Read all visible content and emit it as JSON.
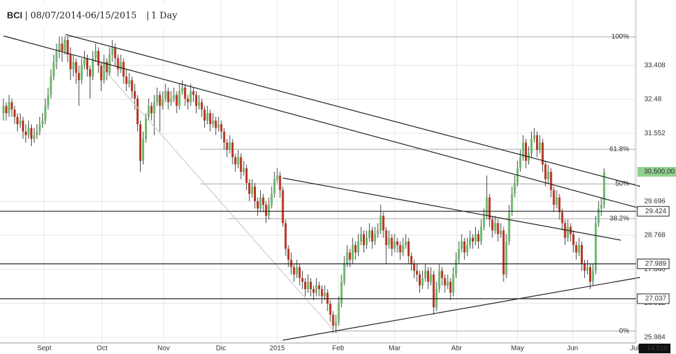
{
  "chart_data": {
    "type": "candlestick",
    "header": {
      "symbol": "BCI",
      "range": "08/07/2014-06/15/2015",
      "interval": "1 Day"
    },
    "xlim": [
      -1.23,
      226.4
    ],
    "xticks": [
      {
        "value": 14.6,
        "label": "Sept"
      },
      {
        "value": 35.3,
        "label": "Oct"
      },
      {
        "value": 57.3,
        "label": "Nov"
      },
      {
        "value": 77.8,
        "label": "Dic"
      },
      {
        "value": 98.0,
        "label": "2015"
      },
      {
        "value": 119.8,
        "label": "Feb"
      },
      {
        "value": 140.0,
        "label": "Mar"
      },
      {
        "value": 162.2,
        "label": "Abr"
      },
      {
        "value": 184.0,
        "label": "May"
      },
      {
        "value": 203.7,
        "label": "Jun"
      },
      {
        "value": 225.9,
        "label": "Jul"
      }
    ],
    "ylim": [
      25.83,
      35.19
    ],
    "yticks": [
      33.408,
      32.48,
      {
        "value": 32.48,
        "label": "32.480"
      },
      31.552,
      29.696,
      28.768,
      {
        "value": 27.84,
        "label": "27.840"
      },
      26.912,
      25.984
    ],
    "grid": true,
    "up_color": "#6ab86a",
    "down_color": "#b8321e",
    "fib": {
      "high": 34.185,
      "low": 26.154,
      "levels": [
        {
          "value": 100,
          "label": "100%"
        },
        {
          "value": 61.8,
          "label": "61.8%"
        },
        {
          "value": 50,
          "label": "50%"
        },
        {
          "value": 38.2,
          "label": "38.2%"
        },
        {
          "value": 0,
          "label": "0%"
        }
      ]
    },
    "price_lines": [
      29.424,
      27.989,
      27.037
    ],
    "last_price": {
      "value": 30.5,
      "label": "30.500,00",
      "color": "#8fd18f"
    },
    "bottom_label": "14.518",
    "ohlc": [
      [
        32.1,
        32.5,
        31.9,
        32.3
      ],
      [
        32.3,
        32.4,
        31.9,
        32.1
      ],
      [
        32.1,
        32.6,
        32.0,
        32.4
      ],
      [
        32.4,
        32.5,
        32.0,
        32.2
      ],
      [
        32.2,
        32.3,
        31.8,
        32.0
      ],
      [
        32.0,
        32.1,
        31.6,
        31.8
      ],
      [
        31.8,
        32.1,
        31.7,
        31.9
      ],
      [
        31.9,
        32.0,
        31.4,
        31.6
      ],
      [
        31.6,
        31.8,
        31.3,
        31.5
      ],
      [
        31.5,
        31.9,
        31.4,
        31.7
      ],
      [
        31.7,
        31.8,
        31.2,
        31.4
      ],
      [
        31.4,
        31.7,
        31.3,
        31.5
      ],
      [
        31.5,
        31.8,
        31.4,
        31.6
      ],
      [
        31.6,
        32.0,
        31.5,
        31.8
      ],
      [
        31.8,
        32.1,
        31.7,
        31.9
      ],
      [
        31.9,
        32.5,
        31.8,
        32.3
      ],
      [
        32.3,
        32.8,
        32.2,
        32.6
      ],
      [
        32.6,
        33.3,
        32.5,
        33.1
      ],
      [
        33.1,
        33.7,
        33.0,
        33.5
      ],
      [
        33.5,
        34.0,
        33.3,
        33.8
      ],
      [
        33.8,
        34.2,
        33.6,
        34.0
      ],
      [
        34.0,
        34.2,
        33.5,
        33.8
      ],
      [
        33.8,
        34.2,
        33.7,
        34.1
      ],
      [
        34.1,
        34.2,
        33.5,
        33.7
      ],
      [
        33.7,
        33.9,
        33.0,
        33.3
      ],
      [
        33.3,
        33.7,
        33.1,
        33.5
      ],
      [
        33.5,
        33.6,
        32.9,
        33.2
      ],
      [
        33.2,
        33.4,
        32.3,
        33.0
      ],
      [
        33.0,
        33.6,
        32.9,
        33.4
      ],
      [
        33.4,
        33.8,
        33.3,
        33.6
      ],
      [
        33.6,
        33.7,
        33.1,
        33.3
      ],
      [
        33.3,
        33.4,
        32.5,
        33.1
      ],
      [
        33.1,
        33.8,
        33.0,
        33.6
      ],
      [
        33.6,
        34.0,
        33.5,
        33.8
      ],
      [
        33.8,
        33.9,
        33.2,
        33.4
      ],
      [
        33.4,
        33.5,
        32.7,
        33.0
      ],
      [
        33.0,
        33.7,
        32.9,
        33.5
      ],
      [
        33.5,
        33.6,
        33.0,
        33.2
      ],
      [
        33.2,
        33.9,
        33.1,
        33.7
      ],
      [
        33.7,
        34.1,
        33.5,
        33.9
      ],
      [
        33.9,
        34.0,
        33.4,
        33.6
      ],
      [
        33.6,
        33.7,
        33.1,
        33.3
      ],
      [
        33.3,
        33.7,
        33.2,
        33.5
      ],
      [
        33.5,
        33.6,
        32.9,
        33.1
      ],
      [
        33.1,
        33.3,
        32.7,
        32.9
      ],
      [
        32.9,
        33.2,
        32.8,
        33.0
      ],
      [
        33.0,
        33.1,
        32.5,
        32.7
      ],
      [
        32.7,
        32.9,
        32.2,
        32.5
      ],
      [
        32.5,
        32.6,
        31.6,
        31.8
      ],
      [
        31.8,
        31.9,
        30.5,
        30.8
      ],
      [
        30.8,
        31.6,
        30.7,
        31.4
      ],
      [
        31.4,
        32.1,
        31.3,
        32.0
      ],
      [
        32.0,
        32.5,
        31.9,
        32.3
      ],
      [
        32.3,
        32.4,
        31.9,
        32.1
      ],
      [
        32.1,
        32.6,
        31.5,
        32.4
      ],
      [
        32.4,
        32.8,
        32.3,
        32.6
      ],
      [
        32.6,
        32.7,
        31.6,
        32.3
      ],
      [
        32.3,
        32.7,
        32.2,
        32.5
      ],
      [
        32.5,
        32.9,
        32.4,
        32.7
      ],
      [
        32.7,
        32.8,
        32.2,
        32.4
      ],
      [
        32.4,
        32.7,
        32.3,
        32.5
      ],
      [
        32.5,
        32.8,
        32.4,
        32.6
      ],
      [
        32.6,
        32.7,
        32.1,
        32.3
      ],
      [
        32.3,
        32.9,
        32.2,
        32.7
      ],
      [
        32.7,
        33.0,
        32.6,
        32.8
      ],
      [
        32.8,
        32.9,
        32.3,
        32.5
      ],
      [
        32.5,
        32.6,
        32.2,
        32.4
      ],
      [
        32.4,
        32.9,
        32.3,
        32.7
      ],
      [
        32.7,
        32.8,
        32.4,
        32.6
      ],
      [
        32.6,
        32.7,
        32.1,
        32.3
      ],
      [
        32.3,
        32.6,
        32.2,
        32.4
      ],
      [
        32.4,
        32.5,
        32.0,
        32.2
      ],
      [
        32.2,
        32.3,
        31.7,
        31.9
      ],
      [
        31.9,
        32.3,
        31.8,
        32.1
      ],
      [
        32.1,
        32.2,
        31.6,
        31.8
      ],
      [
        31.8,
        32.1,
        31.7,
        31.9
      ],
      [
        31.9,
        32.0,
        31.5,
        31.7
      ],
      [
        31.7,
        32.0,
        31.6,
        31.8
      ],
      [
        31.8,
        31.9,
        31.4,
        31.6
      ],
      [
        31.6,
        31.7,
        31.1,
        31.3
      ],
      [
        31.3,
        31.4,
        30.9,
        31.1
      ],
      [
        31.1,
        31.5,
        31.0,
        31.3
      ],
      [
        31.3,
        31.4,
        30.7,
        30.9
      ],
      [
        30.9,
        31.0,
        30.5,
        30.7
      ],
      [
        30.7,
        31.1,
        30.6,
        30.9
      ],
      [
        30.9,
        31.0,
        30.3,
        30.5
      ],
      [
        30.5,
        30.8,
        30.4,
        30.6
      ],
      [
        30.6,
        30.7,
        30.0,
        30.2
      ],
      [
        30.2,
        30.3,
        29.7,
        29.9
      ],
      [
        29.9,
        30.3,
        29.8,
        30.1
      ],
      [
        30.1,
        30.2,
        29.5,
        29.7
      ],
      [
        29.7,
        29.8,
        29.3,
        29.5
      ],
      [
        29.5,
        30.0,
        29.4,
        29.8
      ],
      [
        29.8,
        29.9,
        29.4,
        29.6
      ],
      [
        29.6,
        29.7,
        29.1,
        29.3
      ],
      [
        29.3,
        29.8,
        29.2,
        29.6
      ],
      [
        29.6,
        30.1,
        29.5,
        29.9
      ],
      [
        29.9,
        30.5,
        29.8,
        30.3
      ],
      [
        30.3,
        30.6,
        30.2,
        30.4
      ],
      [
        30.4,
        30.5,
        29.8,
        30.0
      ],
      [
        30.0,
        30.1,
        29.0,
        29.1
      ],
      [
        29.1,
        29.2,
        28.2,
        28.4
      ],
      [
        28.4,
        28.5,
        27.9,
        28.1
      ],
      [
        28.1,
        28.3,
        27.7,
        27.9
      ],
      [
        27.9,
        28.0,
        27.5,
        27.7
      ],
      [
        27.7,
        28.1,
        27.6,
        27.9
      ],
      [
        27.9,
        28.0,
        27.4,
        27.6
      ],
      [
        27.6,
        27.8,
        27.3,
        27.5
      ],
      [
        27.5,
        27.6,
        27.1,
        27.3
      ],
      [
        27.3,
        27.7,
        27.2,
        27.5
      ],
      [
        27.5,
        27.6,
        27.1,
        27.3
      ],
      [
        27.3,
        27.4,
        27.0,
        27.2
      ],
      [
        27.2,
        27.6,
        27.1,
        27.4
      ],
      [
        27.4,
        27.5,
        27.1,
        27.3
      ],
      [
        27.3,
        27.4,
        26.9,
        27.1
      ],
      [
        27.1,
        27.4,
        27.0,
        27.2
      ],
      [
        27.2,
        27.3,
        26.7,
        26.9
      ],
      [
        26.9,
        27.0,
        26.4,
        26.6
      ],
      [
        26.6,
        26.7,
        26.1,
        26.3
      ],
      [
        26.3,
        26.6,
        26.1,
        26.4
      ],
      [
        26.4,
        27.1,
        26.3,
        26.9
      ],
      [
        26.9,
        27.7,
        26.8,
        27.5
      ],
      [
        27.5,
        28.2,
        27.4,
        28.0
      ],
      [
        28.0,
        28.5,
        27.9,
        28.3
      ],
      [
        28.3,
        28.4,
        27.9,
        28.1
      ],
      [
        28.1,
        28.7,
        28.0,
        28.5
      ],
      [
        28.5,
        28.6,
        28.1,
        28.3
      ],
      [
        28.3,
        28.8,
        28.2,
        28.6
      ],
      [
        28.6,
        29.0,
        28.5,
        28.8
      ],
      [
        28.8,
        28.9,
        28.3,
        28.5
      ],
      [
        28.5,
        28.9,
        28.4,
        28.7
      ],
      [
        28.7,
        29.1,
        28.6,
        28.9
      ],
      [
        28.9,
        29.0,
        28.4,
        28.6
      ],
      [
        28.6,
        29.0,
        28.5,
        28.8
      ],
      [
        28.8,
        29.1,
        28.7,
        28.9
      ],
      [
        28.9,
        29.6,
        28.8,
        29.3
      ],
      [
        29.3,
        29.4,
        28.7,
        28.9
      ],
      [
        28.9,
        29.0,
        28.0,
        28.5
      ],
      [
        28.5,
        28.9,
        28.4,
        28.7
      ],
      [
        28.7,
        28.8,
        28.2,
        28.4
      ],
      [
        28.4,
        28.8,
        28.3,
        28.6
      ],
      [
        28.6,
        28.7,
        28.3,
        28.5
      ],
      [
        28.5,
        28.6,
        28.1,
        28.3
      ],
      [
        28.3,
        28.7,
        28.2,
        28.5
      ],
      [
        28.5,
        28.8,
        28.4,
        28.6
      ],
      [
        28.6,
        28.7,
        28.0,
        28.2
      ],
      [
        28.2,
        28.3,
        27.8,
        28.0
      ],
      [
        28.0,
        28.1,
        27.6,
        27.8
      ],
      [
        27.8,
        28.0,
        27.5,
        27.7
      ],
      [
        27.7,
        27.8,
        27.2,
        27.4
      ],
      [
        27.4,
        27.8,
        27.3,
        27.6
      ],
      [
        27.6,
        28.0,
        27.5,
        27.8
      ],
      [
        27.8,
        27.9,
        27.3,
        27.5
      ],
      [
        27.5,
        27.9,
        27.4,
        27.7
      ],
      [
        27.7,
        27.8,
        26.6,
        26.8
      ],
      [
        26.8,
        27.5,
        26.7,
        27.3
      ],
      [
        27.3,
        28.0,
        27.2,
        27.8
      ],
      [
        27.8,
        27.9,
        27.4,
        27.6
      ],
      [
        27.6,
        27.7,
        27.2,
        27.4
      ],
      [
        27.4,
        27.7,
        27.3,
        27.5
      ],
      [
        27.5,
        27.6,
        27.0,
        27.2
      ],
      [
        27.2,
        27.9,
        27.1,
        27.7
      ],
      [
        27.7,
        28.3,
        27.6,
        28.1
      ],
      [
        28.1,
        28.6,
        28.0,
        28.4
      ],
      [
        28.4,
        28.8,
        28.3,
        28.6
      ],
      [
        28.6,
        28.7,
        28.1,
        28.3
      ],
      [
        28.3,
        28.7,
        28.2,
        28.5
      ],
      [
        28.5,
        28.9,
        28.4,
        28.7
      ],
      [
        28.7,
        28.8,
        28.4,
        28.6
      ],
      [
        28.6,
        29.0,
        28.5,
        28.8
      ],
      [
        28.8,
        28.9,
        28.4,
        28.6
      ],
      [
        28.6,
        29.2,
        28.5,
        29.0
      ],
      [
        29.0,
        29.5,
        28.9,
        29.3
      ],
      [
        29.3,
        30.4,
        29.2,
        29.8
      ],
      [
        29.8,
        29.9,
        29.0,
        29.2
      ],
      [
        29.2,
        29.3,
        28.7,
        28.9
      ],
      [
        28.9,
        29.3,
        28.8,
        29.1
      ],
      [
        29.1,
        29.2,
        28.6,
        28.8
      ],
      [
        28.8,
        29.1,
        28.7,
        28.9
      ],
      [
        28.9,
        29.0,
        27.5,
        27.7
      ],
      [
        27.7,
        28.8,
        27.6,
        28.6
      ],
      [
        28.6,
        29.6,
        28.5,
        29.4
      ],
      [
        29.4,
        30.1,
        29.3,
        29.9
      ],
      [
        29.9,
        30.4,
        29.8,
        30.2
      ],
      [
        30.2,
        30.8,
        30.1,
        30.6
      ],
      [
        30.6,
        31.1,
        30.5,
        30.9
      ],
      [
        30.9,
        31.5,
        30.8,
        31.3
      ],
      [
        31.3,
        31.4,
        30.6,
        30.8
      ],
      [
        30.8,
        31.2,
        30.7,
        31.0
      ],
      [
        31.0,
        31.6,
        30.9,
        31.4
      ],
      [
        31.4,
        31.7,
        31.3,
        31.5
      ],
      [
        31.5,
        31.6,
        30.9,
        31.1
      ],
      [
        31.1,
        31.5,
        31.0,
        31.3
      ],
      [
        31.3,
        31.4,
        30.5,
        30.7
      ],
      [
        30.7,
        30.8,
        30.1,
        30.3
      ],
      [
        30.3,
        30.7,
        30.2,
        30.5
      ],
      [
        30.5,
        30.6,
        29.8,
        30.0
      ],
      [
        30.0,
        30.1,
        29.4,
        29.6
      ],
      [
        29.6,
        30.0,
        29.5,
        29.8
      ],
      [
        29.8,
        29.9,
        29.2,
        29.4
      ],
      [
        29.4,
        29.5,
        28.9,
        29.1
      ],
      [
        29.1,
        29.2,
        28.5,
        28.7
      ],
      [
        28.7,
        29.2,
        28.6,
        29.0
      ],
      [
        29.0,
        29.1,
        28.6,
        28.8
      ],
      [
        28.8,
        28.9,
        28.3,
        28.5
      ],
      [
        28.5,
        28.6,
        28.1,
        28.3
      ],
      [
        28.3,
        28.7,
        28.2,
        28.5
      ],
      [
        28.5,
        28.6,
        27.8,
        28.0
      ],
      [
        28.0,
        28.1,
        27.6,
        27.8
      ],
      [
        27.8,
        28.1,
        27.7,
        27.9
      ],
      [
        27.9,
        28.0,
        27.3,
        27.5
      ],
      [
        27.5,
        28.0,
        27.4,
        27.8
      ],
      [
        27.8,
        29.3,
        27.7,
        29.1
      ],
      [
        29.1,
        29.7,
        29.0,
        29.5
      ],
      [
        29.5,
        29.8,
        29.3,
        29.6
      ],
      [
        29.6,
        30.6,
        29.5,
        30.5
      ]
    ]
  }
}
